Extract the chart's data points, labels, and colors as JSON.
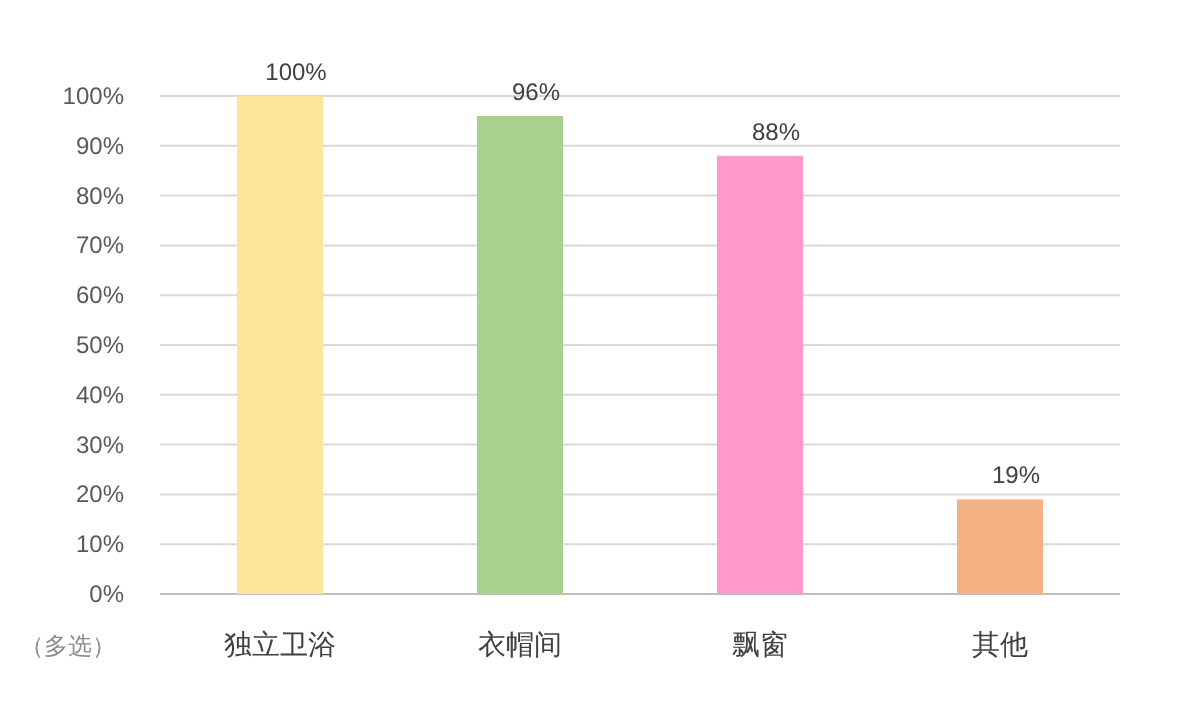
{
  "chart_data": {
    "type": "bar",
    "categories": [
      "独立卫浴",
      "衣帽间",
      "飘窗",
      "其他"
    ],
    "values": [
      100,
      96,
      88,
      19
    ],
    "colors": [
      "#fde699",
      "#a9d18e",
      "#ff99cc",
      "#f4b183"
    ],
    "value_labels": [
      "100%",
      "96%",
      "88%",
      "19%"
    ],
    "ylim": [
      0,
      100
    ],
    "yticks": [
      {
        "value": 0,
        "label": "0%"
      },
      {
        "value": 10,
        "label": "10%"
      },
      {
        "value": 20,
        "label": "20%"
      },
      {
        "value": 30,
        "label": "30%"
      },
      {
        "value": 40,
        "label": "40%"
      },
      {
        "value": 50,
        "label": "50%"
      },
      {
        "value": 60,
        "label": "60%"
      },
      {
        "value": 70,
        "label": "70%"
      },
      {
        "value": 80,
        "label": "80%"
      },
      {
        "value": 90,
        "label": "90%"
      },
      {
        "value": 100,
        "label": "100%"
      }
    ],
    "ylabel": "（多选）",
    "grid": "y"
  }
}
